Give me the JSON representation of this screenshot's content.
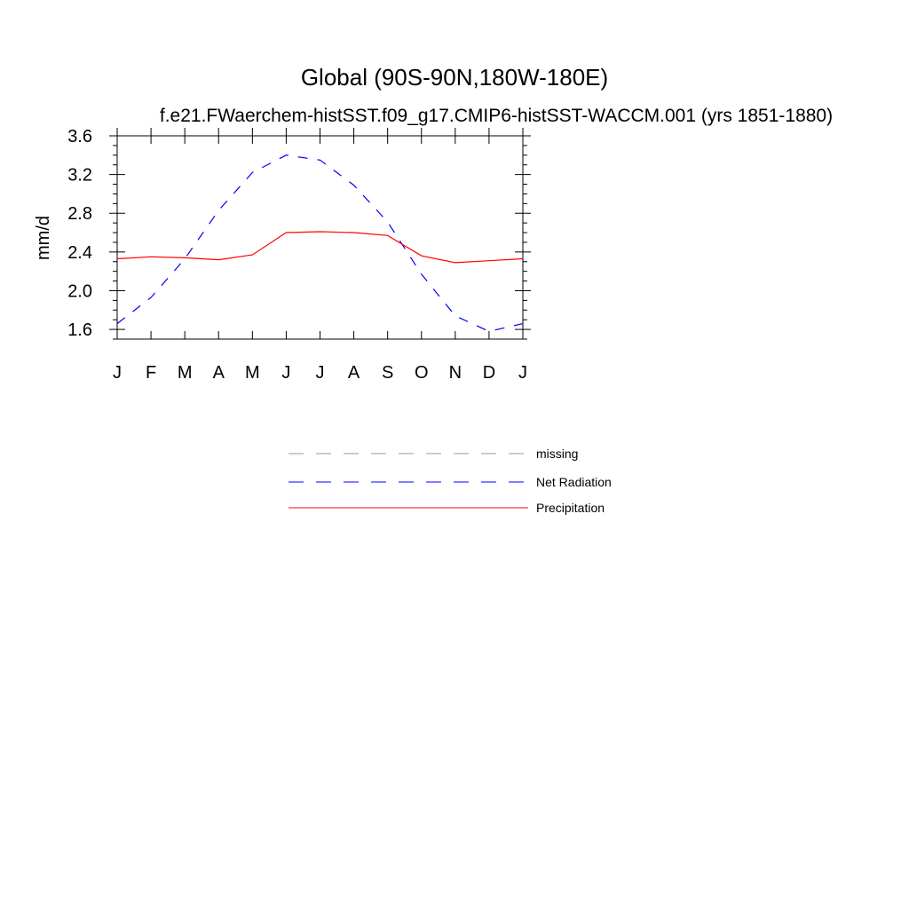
{
  "chart_data": {
    "type": "line",
    "title": "Global (90S-90N,180W-180E)",
    "subtitle": "f.e21.FWaerchem-histSST.f09_g17.CMIP6-histSST-WACCM.001 (yrs 1851-1880)",
    "xlabel": "",
    "ylabel": "mm/d",
    "categories": [
      "J",
      "F",
      "M",
      "A",
      "M",
      "J",
      "J",
      "A",
      "S",
      "O",
      "N",
      "D",
      "J"
    ],
    "y_ticks": [
      "1.6",
      "2.0",
      "2.4",
      "2.8",
      "3.2",
      "3.6"
    ],
    "ylim": [
      1.5,
      3.6
    ],
    "grid": false,
    "legend_placement": "bottom",
    "series": [
      {
        "name": "Net Radiation",
        "color": "#0000ff",
        "style": "dashed",
        "values": [
          1.66,
          1.93,
          2.33,
          2.83,
          3.22,
          3.4,
          3.35,
          3.09,
          2.71,
          2.17,
          1.74,
          1.58,
          1.66
        ]
      },
      {
        "name": "Precipitation",
        "color": "#ff0000",
        "style": "solid",
        "values": [
          2.33,
          2.35,
          2.34,
          2.32,
          2.37,
          2.6,
          2.61,
          2.6,
          2.57,
          2.36,
          2.29,
          2.31,
          2.33
        ]
      }
    ],
    "legend": [
      {
        "label": "missing",
        "color": "#999999",
        "style": "dashed"
      },
      {
        "label": "Net Radiation",
        "color": "#0000ff",
        "style": "dashed"
      },
      {
        "label": "Precipitation",
        "color": "#ff0000",
        "style": "solid"
      }
    ]
  }
}
